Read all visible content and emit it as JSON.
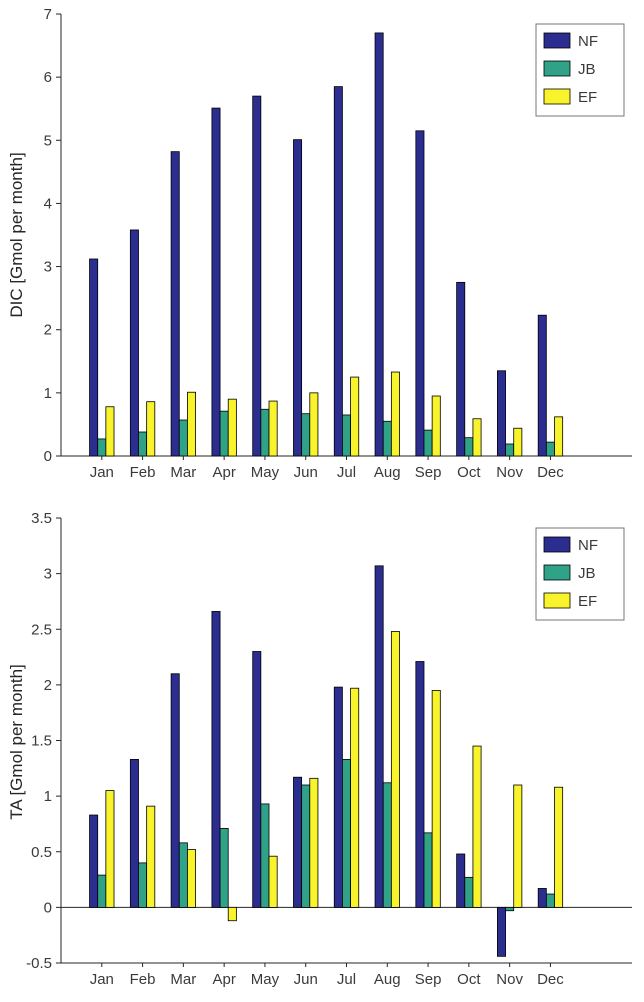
{
  "figure": {
    "background": "#ffffff",
    "text_color": "#3a3a3a",
    "axis_color": "#262626",
    "bar_edge_color": "#000000",
    "legend_border_color": "#777777"
  },
  "chart_data": [
    {
      "type": "bar",
      "title": "",
      "ylabel": "DIC [Gmol per month]",
      "xlabel": "",
      "grid": false,
      "legend_position": "top-right",
      "categories": [
        "Jan",
        "Feb",
        "Mar",
        "Apr",
        "May",
        "Jun",
        "Jul",
        "Aug",
        "Sep",
        "Oct",
        "Nov",
        "Dec"
      ],
      "series": [
        {
          "name": "NF",
          "color": "#2b2d8f",
          "values": [
            3.12,
            3.58,
            4.82,
            5.51,
            5.7,
            5.01,
            5.85,
            6.7,
            5.15,
            2.75,
            1.35,
            2.23
          ]
        },
        {
          "name": "JB",
          "color": "#2fa287",
          "values": [
            0.27,
            0.38,
            0.57,
            0.71,
            0.74,
            0.67,
            0.65,
            0.55,
            0.41,
            0.29,
            0.19,
            0.22
          ]
        },
        {
          "name": "EF",
          "color": "#f8f32b",
          "values": [
            0.78,
            0.86,
            1.01,
            0.9,
            0.87,
            1.0,
            1.25,
            1.33,
            0.95,
            0.59,
            0.44,
            0.62
          ]
        }
      ],
      "ylim": [
        0,
        7
      ],
      "yticks": [
        0,
        1,
        2,
        3,
        4,
        5,
        6,
        7
      ],
      "ytick_labels": [
        "0",
        "1",
        "2",
        "3",
        "4",
        "5",
        "6",
        "7"
      ]
    },
    {
      "type": "bar",
      "title": "",
      "ylabel": "TA [Gmol per month]",
      "xlabel": "",
      "grid": false,
      "legend_position": "top-right",
      "categories": [
        "Jan",
        "Feb",
        "Mar",
        "Apr",
        "May",
        "Jun",
        "Jul",
        "Aug",
        "Sep",
        "Oct",
        "Nov",
        "Dec"
      ],
      "series": [
        {
          "name": "NF",
          "color": "#2b2d8f",
          "values": [
            0.83,
            1.33,
            2.1,
            2.66,
            2.3,
            1.17,
            1.98,
            3.07,
            2.21,
            0.48,
            -0.44,
            0.17
          ]
        },
        {
          "name": "JB",
          "color": "#2fa287",
          "values": [
            0.29,
            0.4,
            0.58,
            0.71,
            0.93,
            1.1,
            1.33,
            1.12,
            0.67,
            0.27,
            -0.03,
            0.12
          ]
        },
        {
          "name": "EF",
          "color": "#f8f32b",
          "values": [
            1.05,
            0.91,
            0.52,
            -0.12,
            0.46,
            1.16,
            1.97,
            2.48,
            1.95,
            1.45,
            1.1,
            1.08
          ]
        }
      ],
      "ylim": [
        -0.5,
        3.5
      ],
      "yticks": [
        -0.5,
        0,
        0.5,
        1,
        1.5,
        2,
        2.5,
        3,
        3.5
      ],
      "ytick_labels": [
        "-0.5",
        "0",
        "0.5",
        "1",
        "1.5",
        "2",
        "2.5",
        "3",
        "3.5"
      ]
    }
  ]
}
